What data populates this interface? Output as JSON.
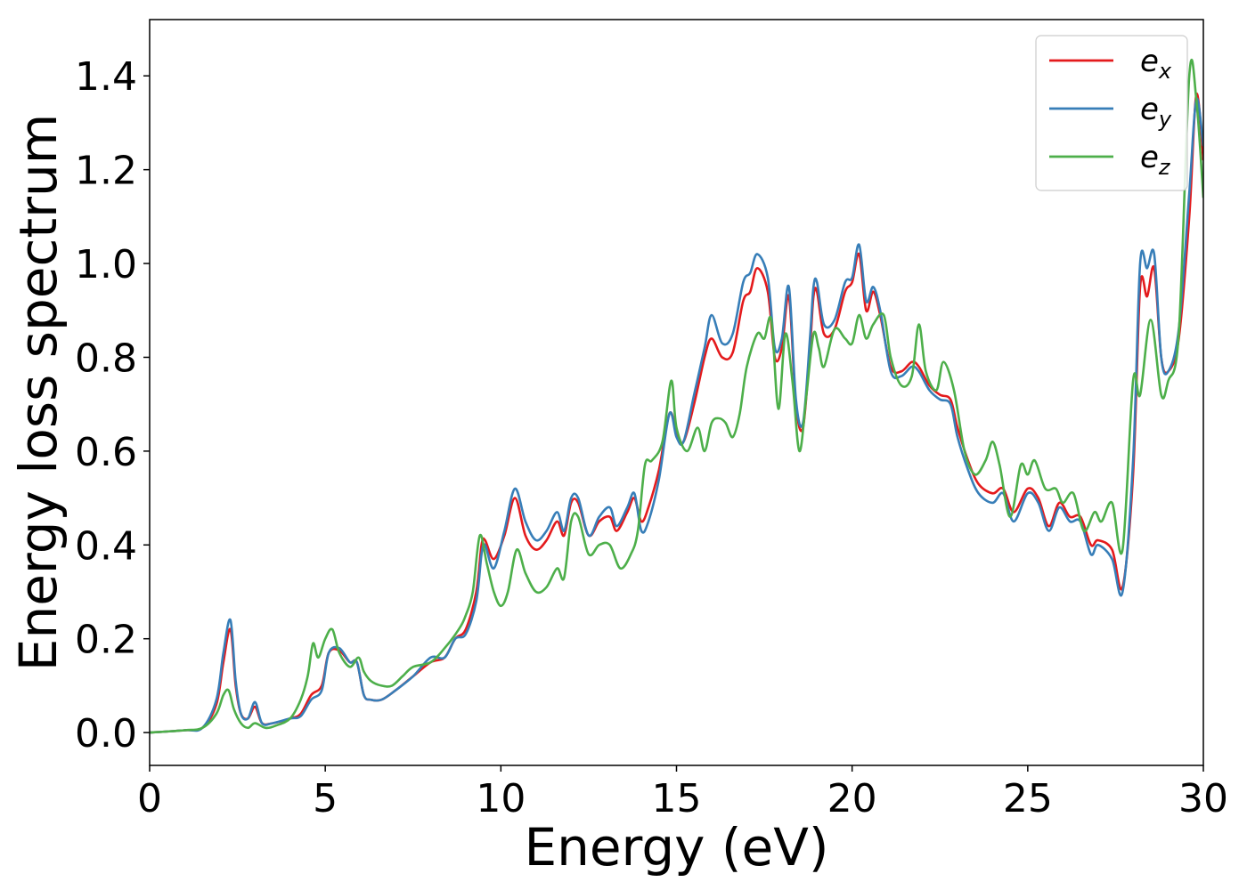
{
  "chart_data": {
    "type": "line",
    "xlabel": "Energy (eV)",
    "ylabel": "Energy loss spectrum",
    "xlim": [
      0,
      30
    ],
    "ylim": [
      -0.07,
      1.52
    ],
    "xticks": [
      "0",
      "5",
      "10",
      "15",
      "20",
      "25",
      "30"
    ],
    "yticks": [
      "0.0",
      "0.2",
      "0.4",
      "0.6",
      "0.8",
      "1.0",
      "1.2",
      "1.4"
    ],
    "grid": false,
    "legend_position": "top-right",
    "series": [
      {
        "name": "e",
        "subscript": "x",
        "color": "#e41a1c",
        "x": [
          0,
          1,
          1.5,
          1.9,
          2.1,
          2.3,
          2.45,
          2.6,
          2.8,
          3.0,
          3.2,
          3.5,
          4.0,
          4.3,
          4.6,
          4.9,
          5.1,
          5.4,
          5.7,
          5.9,
          6.1,
          6.3,
          6.6,
          7.0,
          7.5,
          8.0,
          8.4,
          8.7,
          9.0,
          9.3,
          9.45,
          9.55,
          9.8,
          10.1,
          10.4,
          10.7,
          11.0,
          11.3,
          11.6,
          11.8,
          12.0,
          12.2,
          12.5,
          12.8,
          13.1,
          13.3,
          13.6,
          13.8,
          14.0,
          14.2,
          14.5,
          14.8,
          15.0,
          15.2,
          15.5,
          15.8,
          16.0,
          16.3,
          16.6,
          16.9,
          17.1,
          17.3,
          17.6,
          17.8,
          18.0,
          18.2,
          18.4,
          18.6,
          18.8,
          18.9,
          19.0,
          19.2,
          19.5,
          19.8,
          20.0,
          20.2,
          20.4,
          20.6,
          20.8,
          21.1,
          21.4,
          21.7,
          21.9,
          22.2,
          22.5,
          22.8,
          23.0,
          23.3,
          23.6,
          24.0,
          24.3,
          24.6,
          25.0,
          25.3,
          25.6,
          25.9,
          26.2,
          26.5,
          26.8,
          27.0,
          27.4,
          27.7,
          28.0,
          28.2,
          28.4,
          28.6,
          28.8,
          29.0,
          29.3,
          29.6,
          29.8,
          30.0
        ],
        "y": [
          0,
          0.005,
          0.01,
          0.06,
          0.15,
          0.22,
          0.1,
          0.04,
          0.03,
          0.055,
          0.02,
          0.02,
          0.03,
          0.04,
          0.08,
          0.1,
          0.17,
          0.175,
          0.15,
          0.15,
          0.08,
          0.07,
          0.07,
          0.09,
          0.12,
          0.15,
          0.16,
          0.2,
          0.22,
          0.3,
          0.4,
          0.41,
          0.37,
          0.42,
          0.5,
          0.42,
          0.39,
          0.41,
          0.45,
          0.42,
          0.49,
          0.49,
          0.42,
          0.45,
          0.46,
          0.43,
          0.47,
          0.5,
          0.45,
          0.48,
          0.56,
          0.68,
          0.64,
          0.62,
          0.7,
          0.8,
          0.84,
          0.8,
          0.81,
          0.92,
          0.94,
          0.99,
          0.94,
          0.8,
          0.82,
          0.93,
          0.7,
          0.65,
          0.82,
          0.93,
          0.94,
          0.85,
          0.86,
          0.94,
          0.96,
          1.02,
          0.9,
          0.94,
          0.89,
          0.78,
          0.77,
          0.79,
          0.78,
          0.74,
          0.72,
          0.71,
          0.65,
          0.58,
          0.53,
          0.51,
          0.52,
          0.47,
          0.52,
          0.5,
          0.44,
          0.49,
          0.46,
          0.46,
          0.4,
          0.41,
          0.39,
          0.31,
          0.55,
          0.95,
          0.93,
          0.99,
          0.8,
          0.77,
          0.84,
          1.1,
          1.36,
          1.22
        ]
      },
      {
        "name": "e",
        "subscript": "y",
        "color": "#377eb8",
        "x": [
          0,
          1,
          1.5,
          1.9,
          2.1,
          2.3,
          2.45,
          2.6,
          2.8,
          3.0,
          3.2,
          3.5,
          4.0,
          4.3,
          4.6,
          4.9,
          5.1,
          5.4,
          5.7,
          5.9,
          6.1,
          6.3,
          6.6,
          7.0,
          7.5,
          8.0,
          8.4,
          8.7,
          9.0,
          9.3,
          9.45,
          9.55,
          9.8,
          10.1,
          10.4,
          10.7,
          11.0,
          11.3,
          11.6,
          11.8,
          12.0,
          12.2,
          12.5,
          12.8,
          13.1,
          13.3,
          13.6,
          13.8,
          14.0,
          14.2,
          14.5,
          14.8,
          15.0,
          15.2,
          15.5,
          15.8,
          16.0,
          16.3,
          16.6,
          16.9,
          17.1,
          17.3,
          17.6,
          17.8,
          18.0,
          18.2,
          18.4,
          18.6,
          18.8,
          18.9,
          19.0,
          19.2,
          19.5,
          19.8,
          20.0,
          20.2,
          20.4,
          20.6,
          20.8,
          21.1,
          21.4,
          21.7,
          21.9,
          22.2,
          22.5,
          22.8,
          23.0,
          23.3,
          23.6,
          24.0,
          24.3,
          24.6,
          25.0,
          25.3,
          25.6,
          25.9,
          26.2,
          26.5,
          26.8,
          27.0,
          27.4,
          27.7,
          28.0,
          28.2,
          28.4,
          28.6,
          28.8,
          29.0,
          29.3,
          29.6,
          29.8,
          30.0
        ],
        "y": [
          0,
          0.005,
          0.01,
          0.07,
          0.17,
          0.24,
          0.11,
          0.04,
          0.03,
          0.065,
          0.02,
          0.02,
          0.03,
          0.035,
          0.07,
          0.09,
          0.17,
          0.18,
          0.15,
          0.15,
          0.08,
          0.07,
          0.07,
          0.09,
          0.12,
          0.16,
          0.16,
          0.2,
          0.21,
          0.28,
          0.38,
          0.4,
          0.35,
          0.43,
          0.52,
          0.45,
          0.41,
          0.43,
          0.47,
          0.43,
          0.5,
          0.5,
          0.42,
          0.46,
          0.48,
          0.44,
          0.48,
          0.51,
          0.43,
          0.45,
          0.54,
          0.68,
          0.63,
          0.62,
          0.72,
          0.82,
          0.89,
          0.83,
          0.85,
          0.96,
          0.98,
          1.02,
          0.97,
          0.82,
          0.84,
          0.95,
          0.71,
          0.66,
          0.84,
          0.95,
          0.96,
          0.87,
          0.88,
          0.96,
          0.97,
          1.04,
          0.92,
          0.95,
          0.9,
          0.77,
          0.76,
          0.78,
          0.77,
          0.73,
          0.71,
          0.7,
          0.63,
          0.56,
          0.51,
          0.49,
          0.51,
          0.45,
          0.51,
          0.49,
          0.43,
          0.48,
          0.45,
          0.45,
          0.38,
          0.4,
          0.37,
          0.3,
          0.58,
          1.0,
          0.99,
          1.02,
          0.8,
          0.77,
          0.86,
          1.15,
          1.35,
          1.25
        ]
      },
      {
        "name": "e",
        "subscript": "z",
        "color": "#4daf4a",
        "x": [
          0,
          1,
          1.5,
          1.9,
          2.1,
          2.25,
          2.4,
          2.6,
          2.8,
          3.0,
          3.3,
          3.6,
          4.0,
          4.3,
          4.5,
          4.65,
          4.8,
          5.0,
          5.2,
          5.4,
          5.7,
          5.95,
          6.1,
          6.3,
          6.6,
          6.9,
          7.2,
          7.5,
          8.0,
          8.4,
          8.8,
          9.0,
          9.2,
          9.4,
          9.6,
          9.8,
          10.0,
          10.2,
          10.45,
          10.7,
          11.0,
          11.3,
          11.6,
          11.8,
          12.0,
          12.2,
          12.5,
          12.8,
          13.1,
          13.4,
          13.7,
          13.9,
          14.1,
          14.3,
          14.6,
          14.85,
          15.0,
          15.3,
          15.6,
          15.8,
          16.0,
          16.2,
          16.4,
          16.6,
          16.8,
          17.0,
          17.3,
          17.5,
          17.7,
          17.9,
          18.1,
          18.3,
          18.5,
          18.7,
          18.9,
          19.05,
          19.2,
          19.5,
          19.8,
          20.0,
          20.2,
          20.4,
          20.6,
          20.9,
          21.1,
          21.4,
          21.7,
          21.9,
          22.1,
          22.4,
          22.6,
          22.9,
          23.2,
          23.5,
          23.8,
          24.0,
          24.2,
          24.5,
          24.8,
          25.0,
          25.2,
          25.5,
          25.8,
          26.0,
          26.3,
          26.6,
          26.9,
          27.1,
          27.4,
          27.7,
          28.0,
          28.2,
          28.5,
          28.8,
          29.0,
          29.3,
          29.6,
          29.8,
          30.0
        ],
        "y": [
          0,
          0.005,
          0.01,
          0.04,
          0.08,
          0.09,
          0.05,
          0.02,
          0.01,
          0.02,
          0.01,
          0.015,
          0.03,
          0.07,
          0.12,
          0.19,
          0.16,
          0.2,
          0.22,
          0.17,
          0.14,
          0.16,
          0.13,
          0.11,
          0.1,
          0.1,
          0.12,
          0.14,
          0.15,
          0.18,
          0.22,
          0.25,
          0.3,
          0.42,
          0.36,
          0.3,
          0.27,
          0.3,
          0.39,
          0.34,
          0.3,
          0.31,
          0.35,
          0.33,
          0.45,
          0.46,
          0.38,
          0.4,
          0.4,
          0.35,
          0.38,
          0.43,
          0.57,
          0.58,
          0.62,
          0.75,
          0.65,
          0.6,
          0.65,
          0.6,
          0.66,
          0.67,
          0.66,
          0.63,
          0.68,
          0.78,
          0.85,
          0.84,
          0.88,
          0.69,
          0.85,
          0.75,
          0.6,
          0.72,
          0.85,
          0.82,
          0.78,
          0.86,
          0.84,
          0.83,
          0.89,
          0.84,
          0.87,
          0.89,
          0.8,
          0.74,
          0.76,
          0.87,
          0.77,
          0.73,
          0.79,
          0.73,
          0.6,
          0.55,
          0.58,
          0.62,
          0.57,
          0.46,
          0.57,
          0.55,
          0.58,
          0.52,
          0.52,
          0.49,
          0.51,
          0.43,
          0.47,
          0.45,
          0.49,
          0.39,
          0.75,
          0.72,
          0.88,
          0.72,
          0.75,
          0.85,
          1.4,
          1.35,
          1.14
        ]
      }
    ]
  }
}
